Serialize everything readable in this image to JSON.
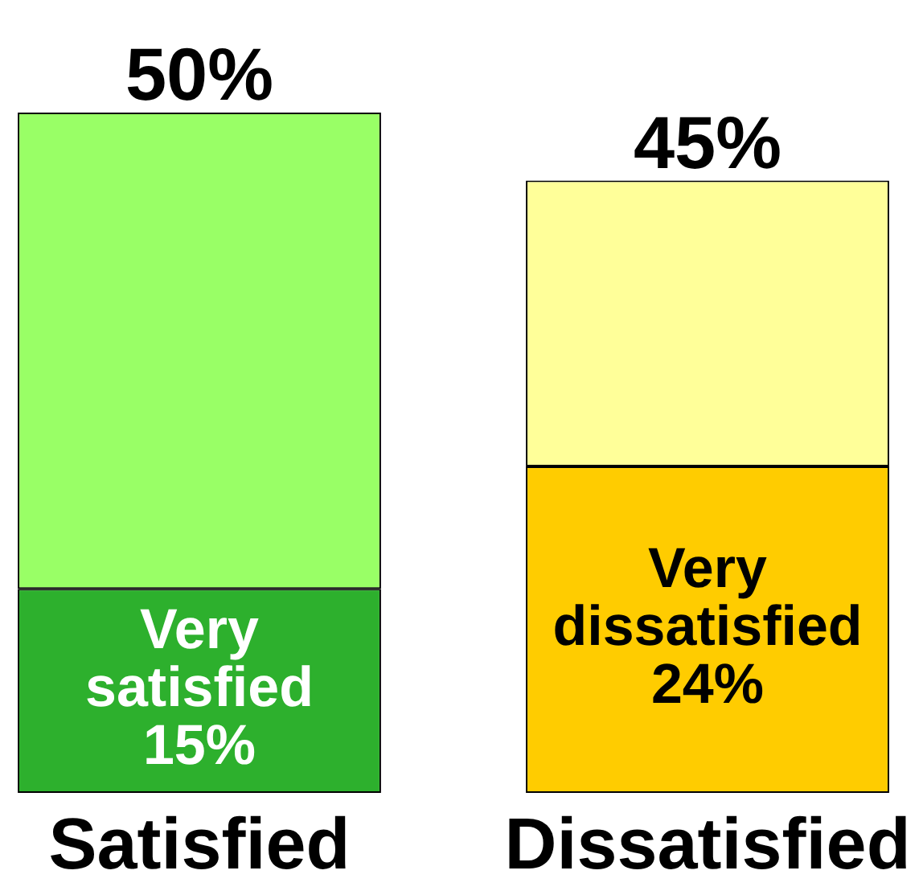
{
  "chart_data": {
    "type": "bar",
    "categories": [
      "Satisfied",
      "Dissatisfied"
    ],
    "stacked": true,
    "tick_labels": "x",
    "series": [
      {
        "colors": [
          "#2db02d",
          "#ffcc00"
        ],
        "values": [
          15,
          24
        ],
        "value_labels": [
          "Very satisfied 15%",
          "Very dissatisfied 24%"
        ]
      },
      {
        "colors": [
          "#99ff66",
          "#ffff99"
        ],
        "values": [
          35,
          21
        ]
      }
    ],
    "totals": [
      "50%",
      "45%"
    ]
  }
}
